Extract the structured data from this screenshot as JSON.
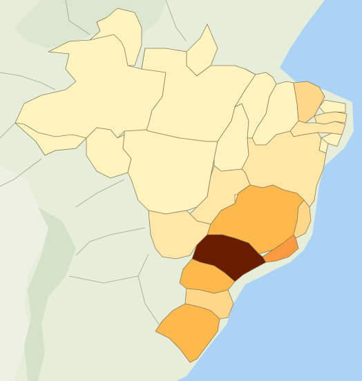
{
  "map": {
    "type": "choropleth",
    "country": "Brazil",
    "colors": {
      "ocean": "#aad3f5",
      "land": "#e6eed9",
      "land_shade": "#d6e1c9",
      "land_dry": "#eef0e4",
      "scale_1": "#fff4c0",
      "scale_2": "#ffe7a8",
      "scale_3": "#fed78b",
      "scale_4": "#fdb94c",
      "scale_5": "#fb9a40",
      "scale_6": "#6a1c00"
    },
    "regions": [
      {
        "id": "AM",
        "shade": "scale_1"
      },
      {
        "id": "RR",
        "shade": "scale_1"
      },
      {
        "id": "AP",
        "shade": "scale_1"
      },
      {
        "id": "PA",
        "shade": "scale_1"
      },
      {
        "id": "AC",
        "shade": "scale_1"
      },
      {
        "id": "RO",
        "shade": "scale_1"
      },
      {
        "id": "MT",
        "shade": "scale_1"
      },
      {
        "id": "TO",
        "shade": "scale_1"
      },
      {
        "id": "MA",
        "shade": "scale_1"
      },
      {
        "id": "PI",
        "shade": "scale_1"
      },
      {
        "id": "CE",
        "shade": "scale_3"
      },
      {
        "id": "RN",
        "shade": "scale_1"
      },
      {
        "id": "PB",
        "shade": "scale_2"
      },
      {
        "id": "PE",
        "shade": "scale_2"
      },
      {
        "id": "AL",
        "shade": "scale_1"
      },
      {
        "id": "SE",
        "shade": "scale_1"
      },
      {
        "id": "BA",
        "shade": "scale_2"
      },
      {
        "id": "GO",
        "shade": "scale_2"
      },
      {
        "id": "DF",
        "shade": "scale_1"
      },
      {
        "id": "MS",
        "shade": "scale_2"
      },
      {
        "id": "MG",
        "shade": "scale_4"
      },
      {
        "id": "ES",
        "shade": "scale_3"
      },
      {
        "id": "RJ",
        "shade": "scale_5"
      },
      {
        "id": "SP",
        "shade": "scale_6"
      },
      {
        "id": "PR",
        "shade": "scale_4"
      },
      {
        "id": "SC",
        "shade": "scale_3"
      },
      {
        "id": "RS",
        "shade": "scale_4"
      }
    ]
  }
}
